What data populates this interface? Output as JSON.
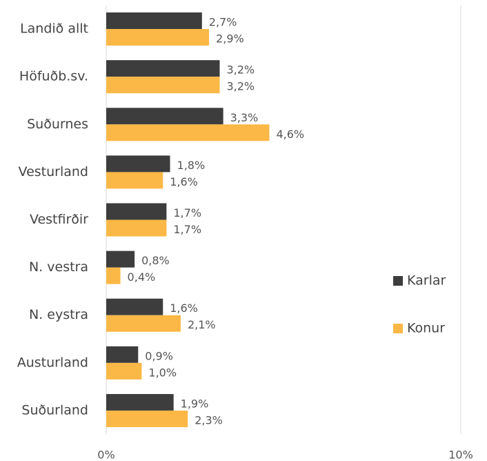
{
  "chart_data": {
    "type": "barh",
    "categories": [
      "Landið allt",
      "Höfuðb.sv.",
      "Suðurnes",
      "Vesturland",
      "Vestfirðir",
      "N. vestra",
      "N. eystra",
      "Austurland",
      "Suðurland"
    ],
    "series": [
      {
        "name": "Karlar",
        "color": "#3d3d3d",
        "values": [
          2.7,
          3.2,
          3.3,
          1.8,
          1.7,
          0.8,
          1.6,
          0.9,
          1.9
        ],
        "value_labels": [
          "2,7%",
          "3,2%",
          "3,3%",
          "1,8%",
          "1,7%",
          "0,8%",
          "1,6%",
          "0,9%",
          "1,9%"
        ]
      },
      {
        "name": "Konur",
        "color": "#fbb846",
        "values": [
          2.9,
          3.2,
          4.6,
          1.6,
          1.7,
          0.4,
          2.1,
          1.0,
          2.3
        ],
        "value_labels": [
          "2,9%",
          "3,2%",
          "4,6%",
          "1,6%",
          "1,7%",
          "0,4%",
          "2,1%",
          "1,0%",
          "2,3%"
        ]
      }
    ],
    "xlim": [
      0,
      10
    ],
    "xticks": [
      {
        "value": 0,
        "label": "0%"
      },
      {
        "value": 10,
        "label": "10%"
      }
    ],
    "grid": true,
    "legend": "right"
  }
}
